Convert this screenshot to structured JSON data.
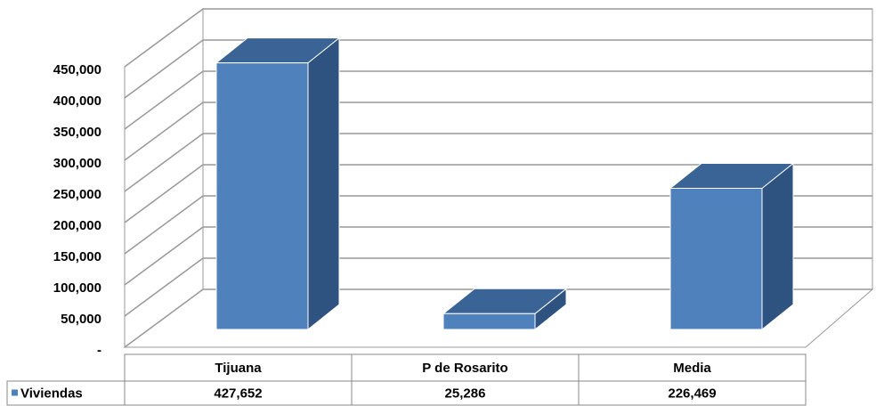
{
  "chart_data": {
    "type": "bar",
    "categories": [
      "Tijuana",
      "P de Rosarito",
      "Media"
    ],
    "series": [
      {
        "name": "Viviendas",
        "color": "#4f81bd",
        "values": [
          427652,
          25286,
          226469
        ],
        "value_labels": [
          "427,652",
          "25,286",
          "226,469"
        ]
      }
    ],
    "ylim": [
      0,
      450000
    ],
    "yticks": [
      {
        "value": 0,
        "label": "-"
      },
      {
        "value": 50000,
        "label": "50,000"
      },
      {
        "value": 100000,
        "label": "100,000"
      },
      {
        "value": 150000,
        "label": "150,000"
      },
      {
        "value": 200000,
        "label": "200,000"
      },
      {
        "value": 250000,
        "label": "250,000"
      },
      {
        "value": 300000,
        "label": "300,000"
      },
      {
        "value": 350000,
        "label": "350,000"
      },
      {
        "value": 400000,
        "label": "400,000"
      },
      {
        "value": 450000,
        "label": "450,000"
      }
    ],
    "grid": true,
    "legend": "table"
  }
}
